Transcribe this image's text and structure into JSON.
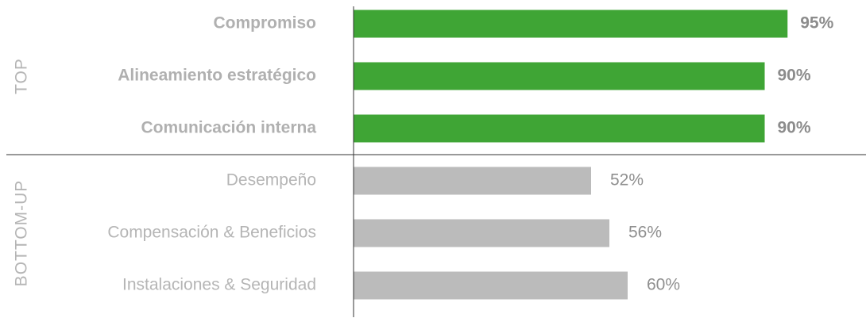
{
  "chart_data": {
    "type": "bar",
    "groups": [
      {
        "name": "TOP",
        "color": "#3fa535",
        "bold": true,
        "categories": [
          "Compromiso",
          "Alineamiento estratégico",
          "Comunicación interna"
        ],
        "values": [
          95,
          90,
          90
        ],
        "value_labels": [
          "95%",
          "90%",
          "90%"
        ]
      },
      {
        "name": "BOTTOM-UP",
        "color": "#bbbbbb",
        "bold": false,
        "categories": [
          "Desempeño",
          "Compensación & Beneficios",
          "Instalaciones & Seguridad"
        ],
        "values": [
          52,
          56,
          60
        ],
        "value_labels": [
          "52%",
          "56%",
          "60%"
        ]
      }
    ]
  }
}
